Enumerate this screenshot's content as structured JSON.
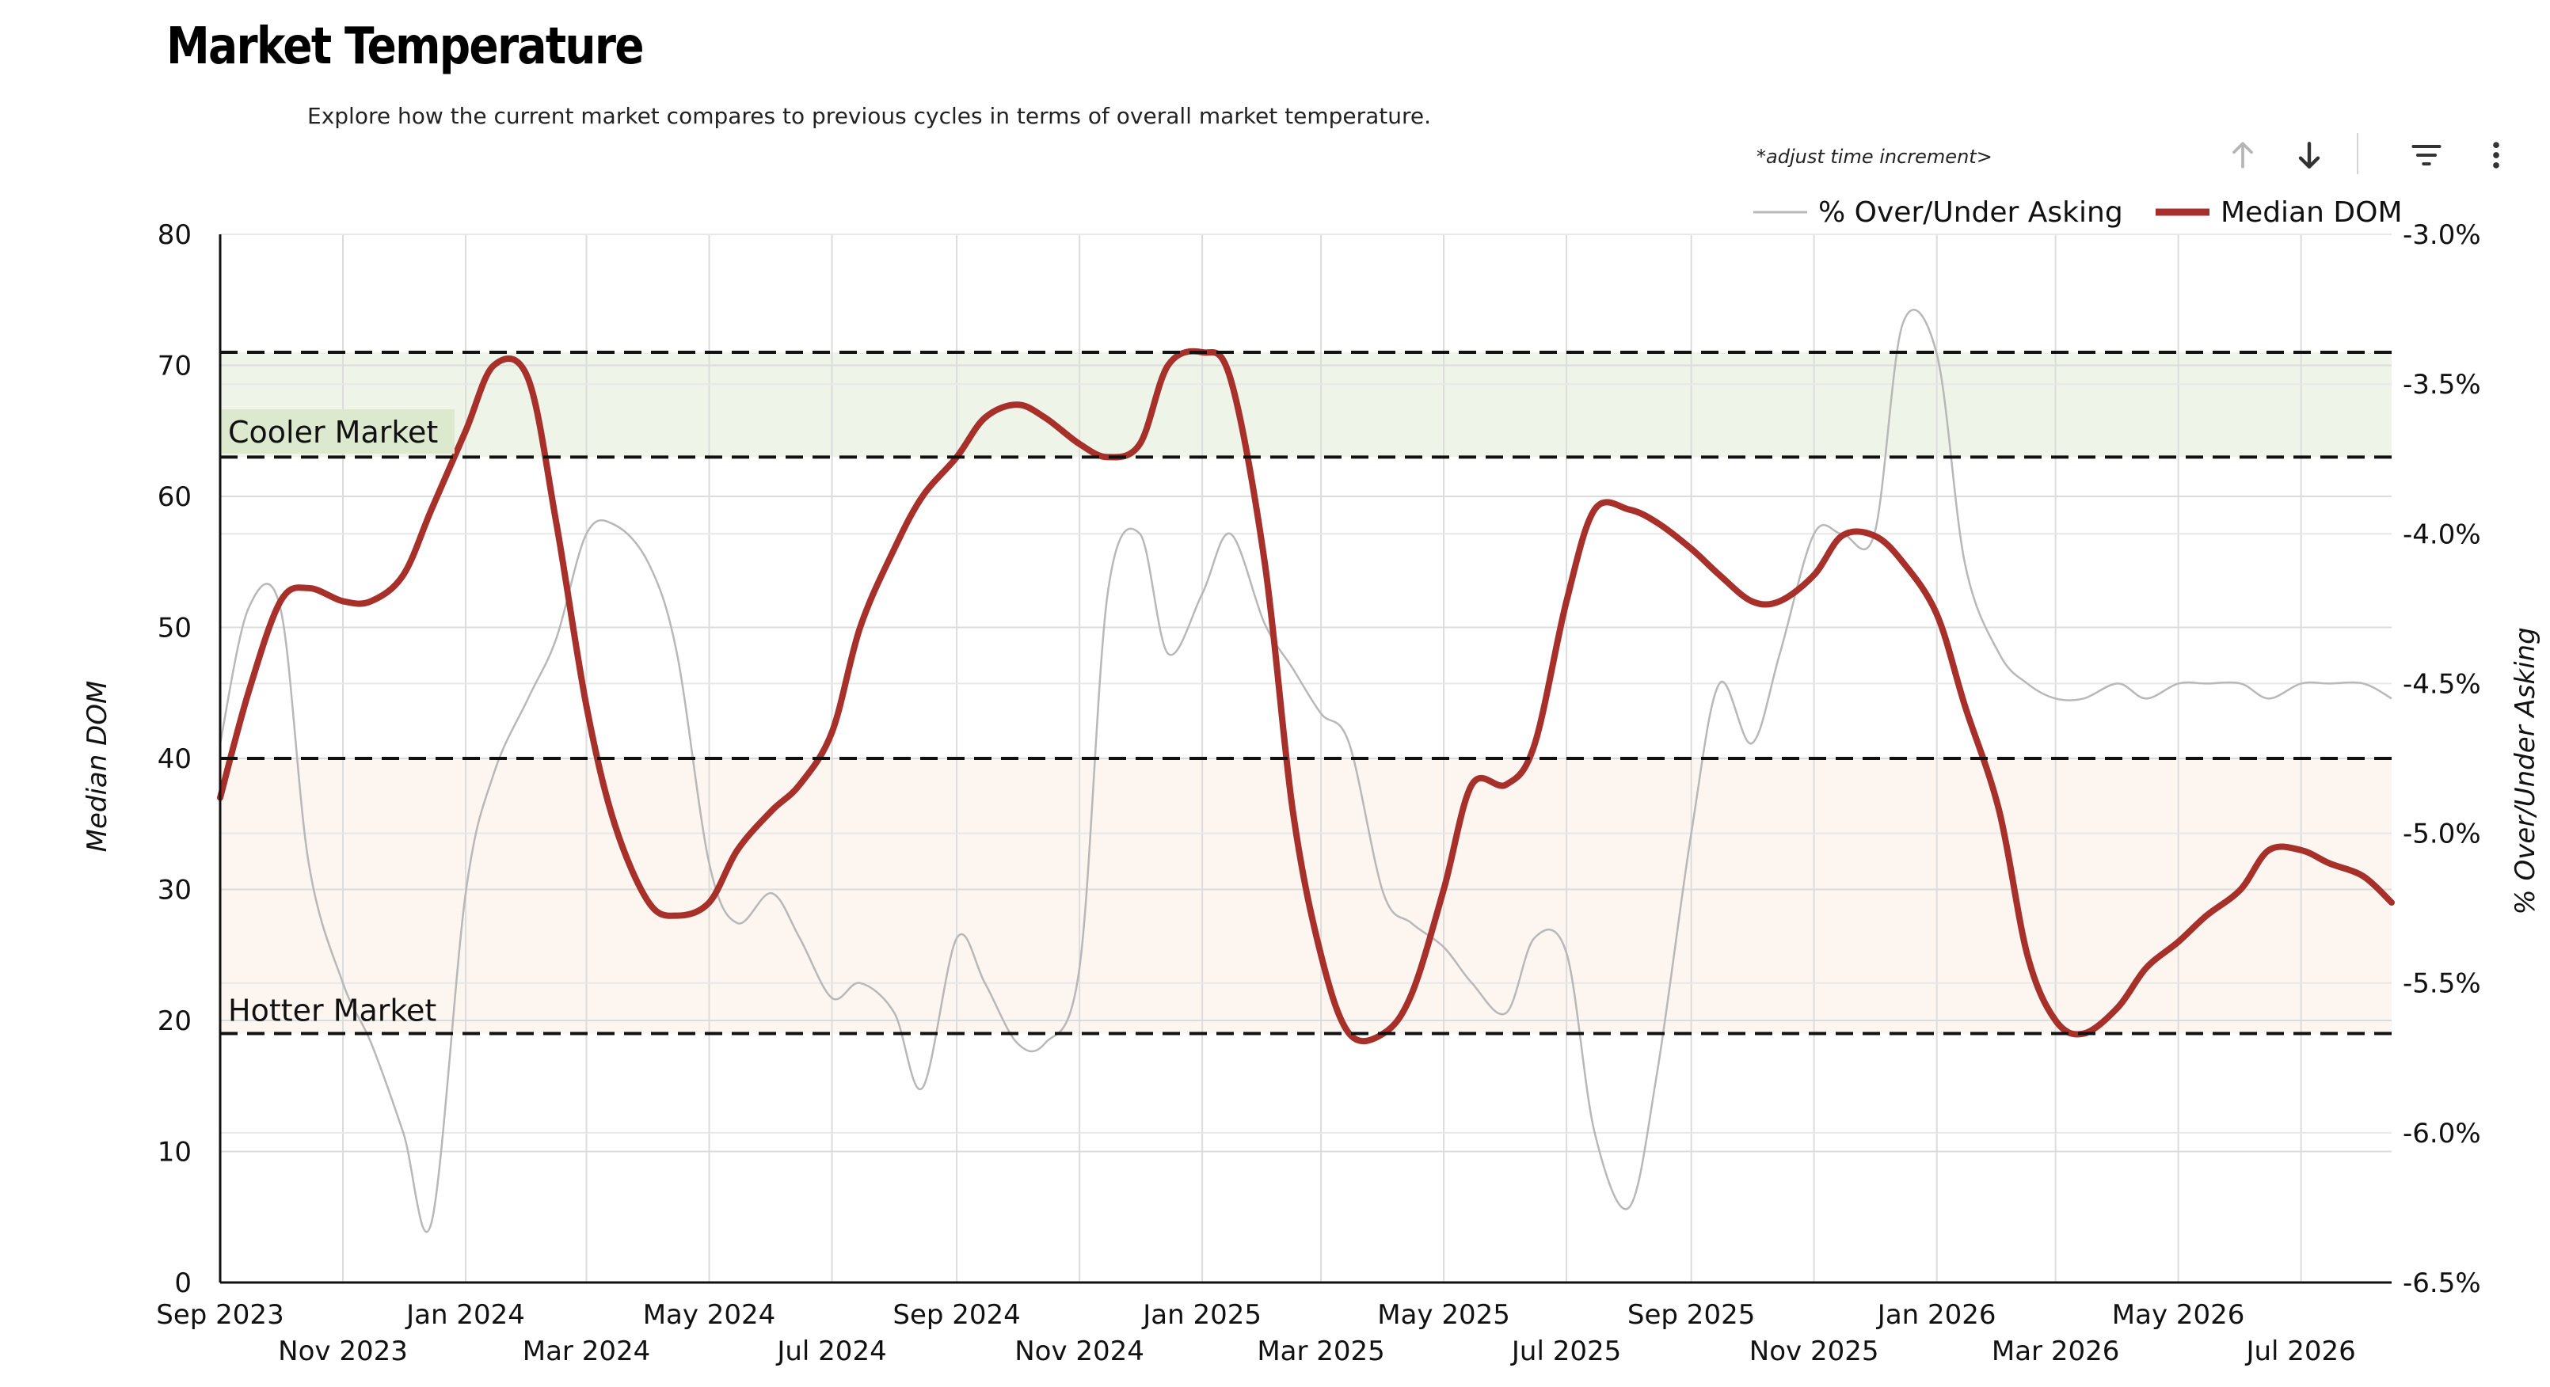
{
  "header": {
    "title": "Market Temperature",
    "subtitle": "Explore how the current market compares to previous cycles in terms of overall market temperature.",
    "adjust_label": "*adjust time increment>"
  },
  "toolbar": {
    "icons": [
      "arrow-up-icon",
      "arrow-down-icon",
      "filter-icon",
      "more-vert-icon"
    ]
  },
  "colors": {
    "dom_line": "#a8302a",
    "over_under_line": "#b8b8b8",
    "cooler_band": "#eef4e8",
    "cooler_label_bg": "#dde9cf",
    "hotter_band": "#fdf5f0",
    "grid": "#dcdcdc",
    "threshold": "#111111"
  },
  "chart_data": {
    "type": "line",
    "title": "Market Temperature",
    "xlabel": "",
    "ylabel": "Median DOM",
    "y2label": "% Over/Under Asking",
    "ylim": [
      0,
      80
    ],
    "y2lim": [
      -6.5,
      -3.0
    ],
    "yticks": [
      0,
      10,
      20,
      30,
      40,
      50,
      60,
      70,
      80
    ],
    "y2ticks": [
      "-6.5%",
      "-6.0%",
      "-5.5%",
      "-5.0%",
      "-4.5%",
      "-4.0%",
      "-3.5%",
      "-3.0%"
    ],
    "y2tick_values": [
      -6.5,
      -6.0,
      -5.5,
      -5.0,
      -4.5,
      -4.0,
      -3.5,
      -3.0
    ],
    "x_tick_labels": [
      "Sep 2023",
      "Nov 2023",
      "Jan 2024",
      "Mar 2024",
      "May 2024",
      "Jul 2024",
      "Sep 2024",
      "Nov 2024",
      "Jan 2025",
      "Mar 2025",
      "May 2025",
      "Jul 2025",
      "Sep 2025",
      "Nov 2025",
      "Jan 2026",
      "Mar 2026",
      "May 2026",
      "Jul 2026"
    ],
    "x_range": [
      "2023-09-01",
      "2026-08-15"
    ],
    "grid": true,
    "legend_position": "top-right",
    "bands": [
      {
        "label": "Cooler Market",
        "from": 63,
        "to": 71
      },
      {
        "label": "Hotter Market",
        "from": 19,
        "to": 40
      }
    ],
    "thresholds": [
      71,
      63,
      40,
      19
    ],
    "series": [
      {
        "name": "Median DOM",
        "axis": "left",
        "x": [
          "2023-09-01",
          "2023-09-15",
          "2023-10-01",
          "2023-10-15",
          "2023-11-01",
          "2023-11-15",
          "2023-12-01",
          "2023-12-15",
          "2024-01-01",
          "2024-01-15",
          "2024-02-01",
          "2024-02-15",
          "2024-03-01",
          "2024-03-15",
          "2024-04-01",
          "2024-04-15",
          "2024-05-01",
          "2024-05-15",
          "2024-06-01",
          "2024-06-15",
          "2024-07-01",
          "2024-07-15",
          "2024-08-01",
          "2024-08-15",
          "2024-09-01",
          "2024-09-15",
          "2024-10-01",
          "2024-10-15",
          "2024-11-01",
          "2024-11-15",
          "2024-12-01",
          "2024-12-15",
          "2025-01-01",
          "2025-01-15",
          "2025-02-01",
          "2025-02-15",
          "2025-03-01",
          "2025-03-15",
          "2025-04-01",
          "2025-04-15",
          "2025-05-01",
          "2025-05-15",
          "2025-06-01",
          "2025-06-15",
          "2025-07-01",
          "2025-07-15",
          "2025-08-01",
          "2025-08-15",
          "2025-09-01",
          "2025-09-15",
          "2025-10-01",
          "2025-10-15",
          "2025-11-01",
          "2025-11-15",
          "2025-12-01",
          "2025-12-15",
          "2026-01-01",
          "2026-01-15",
          "2026-02-01",
          "2026-02-15",
          "2026-03-01",
          "2026-03-15",
          "2026-04-01",
          "2026-04-15",
          "2026-05-01",
          "2026-05-15",
          "2026-06-01",
          "2026-06-15",
          "2026-07-01",
          "2026-07-15",
          "2026-08-01",
          "2026-08-15"
        ],
        "values": [
          37,
          45,
          52,
          53,
          52,
          52,
          54,
          59,
          65,
          70,
          69,
          58,
          44,
          35,
          29,
          28,
          29,
          33,
          36,
          38,
          42,
          50,
          56,
          60,
          63,
          66,
          67,
          66,
          64,
          63,
          64,
          70,
          71,
          69,
          55,
          36,
          25,
          19,
          19,
          22,
          30,
          38,
          38,
          41,
          52,
          59,
          59,
          58,
          56,
          54,
          52,
          52,
          54,
          57,
          57,
          55,
          51,
          44,
          36,
          25,
          20,
          19,
          21,
          24,
          26,
          28,
          30,
          33,
          33,
          32,
          31,
          29
        ]
      },
      {
        "name": "% Over/Under Asking",
        "axis": "right",
        "x": [
          "2023-09-01",
          "2023-09-15",
          "2023-10-01",
          "2023-10-15",
          "2023-11-01",
          "2023-11-15",
          "2023-12-01",
          "2023-12-15",
          "2024-01-01",
          "2024-01-15",
          "2024-02-01",
          "2024-02-15",
          "2024-03-01",
          "2024-03-15",
          "2024-04-01",
          "2024-04-15",
          "2024-05-01",
          "2024-05-15",
          "2024-06-01",
          "2024-06-15",
          "2024-07-01",
          "2024-07-15",
          "2024-08-01",
          "2024-08-15",
          "2024-09-01",
          "2024-09-15",
          "2024-10-01",
          "2024-10-15",
          "2024-11-01",
          "2024-11-15",
          "2024-12-01",
          "2024-12-15",
          "2025-01-01",
          "2025-01-15",
          "2025-02-01",
          "2025-02-15",
          "2025-03-01",
          "2025-03-15",
          "2025-04-01",
          "2025-04-15",
          "2025-05-01",
          "2025-05-15",
          "2025-06-01",
          "2025-06-15",
          "2025-07-01",
          "2025-07-15",
          "2025-08-01",
          "2025-08-15",
          "2025-09-01",
          "2025-09-15",
          "2025-10-01",
          "2025-10-15",
          "2025-11-01",
          "2025-11-15",
          "2025-12-01",
          "2025-12-15",
          "2026-01-01",
          "2026-01-15",
          "2026-02-01",
          "2026-02-15",
          "2026-03-01",
          "2026-03-15",
          "2026-04-01",
          "2026-04-15",
          "2026-05-01",
          "2026-05-15",
          "2026-06-01",
          "2026-06-15",
          "2026-07-01",
          "2026-07-15",
          "2026-08-01",
          "2026-08-15"
        ],
        "values": [
          -4.7,
          -4.25,
          -4.25,
          -5.1,
          -5.5,
          -5.7,
          -6.0,
          -6.3,
          -5.2,
          -4.8,
          -4.55,
          -4.35,
          -4.0,
          -3.97,
          -4.1,
          -4.4,
          -5.1,
          -5.3,
          -5.2,
          -5.35,
          -5.55,
          -5.5,
          -5.6,
          -5.85,
          -5.35,
          -5.5,
          -5.7,
          -5.7,
          -5.45,
          -4.2,
          -4.0,
          -4.4,
          -4.2,
          -4.0,
          -4.3,
          -4.45,
          -4.6,
          -4.7,
          -5.2,
          -5.3,
          -5.38,
          -5.5,
          -5.6,
          -5.35,
          -5.4,
          -6.0,
          -6.25,
          -5.8,
          -5.0,
          -4.5,
          -4.7,
          -4.4,
          -4.0,
          -4.0,
          -4.0,
          -3.3,
          -3.4,
          -4.1,
          -4.4,
          -4.5,
          -4.55,
          -4.55,
          -4.5,
          -4.55,
          -4.5,
          -4.5,
          -4.5,
          -4.55,
          -4.5,
          -4.5,
          -4.5,
          -4.55
        ]
      }
    ]
  }
}
